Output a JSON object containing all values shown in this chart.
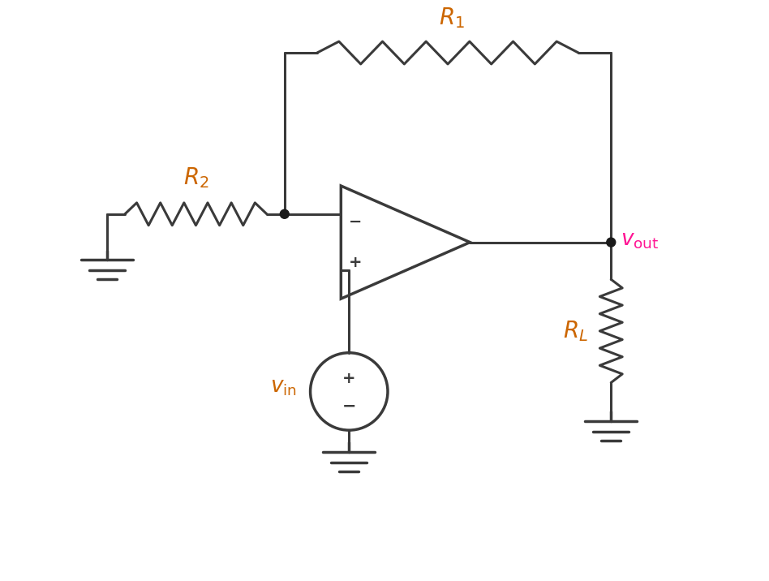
{
  "bg_color": "#ffffff",
  "line_color": "#3a3a3a",
  "label_color": "#cc6600",
  "vout_color": "#ff1493",
  "node_color": "#1a1a1a",
  "figsize": [
    9.48,
    7.16
  ],
  "dpi": 100,
  "lw": 2.2,
  "dot_r": 0.055,
  "gnd_lw": 2.5
}
